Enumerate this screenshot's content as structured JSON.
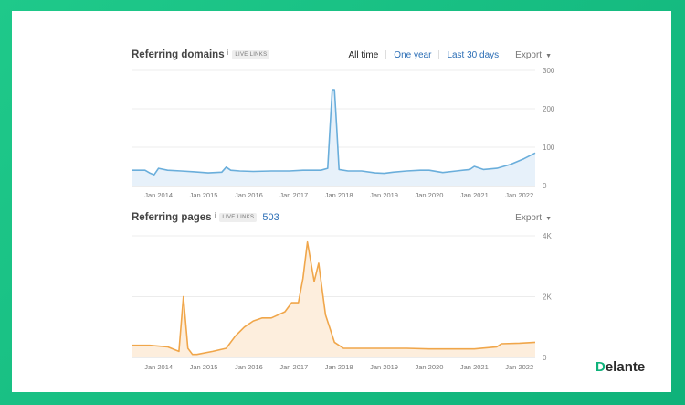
{
  "panels": {
    "domains": {
      "title": "Referring domains",
      "info": "i",
      "badge": "LIVE LINKS",
      "ranges": [
        "All time",
        "One year",
        "Last 30 days"
      ],
      "active_range": "All time",
      "export": "Export",
      "caret": "▼"
    },
    "pages": {
      "title": "Referring pages",
      "info": "i",
      "badge": "LIVE LINKS",
      "count": "503",
      "export": "Export",
      "caret": "▼"
    }
  },
  "logo": {
    "mark": "D",
    "text": "elante"
  },
  "chart_data": [
    {
      "type": "area",
      "color": "#6aaedb",
      "fill": "#e7f1fa",
      "x_ticks": [
        "Jan 2014",
        "Jan 2015",
        "Jan 2016",
        "Jan 2017",
        "Jan 2018",
        "Jan 2019",
        "Jan 2020",
        "Jan 2021",
        "Jan 2022"
      ],
      "x_tick_values": [
        2014,
        2015,
        2016,
        2017,
        2018,
        2019,
        2020,
        2021,
        2022
      ],
      "y_ticks": [
        "0",
        "100",
        "200",
        "300"
      ],
      "y_tick_values": [
        0,
        100,
        200,
        300
      ],
      "xlim": [
        2013.4,
        2022.35
      ],
      "ylim": [
        0,
        300
      ],
      "series": [
        {
          "x": [
            2013.4,
            2013.7,
            2013.8,
            2013.9,
            2014.0,
            2014.2,
            2014.5,
            2014.8,
            2015.1,
            2015.4,
            2015.5,
            2015.6,
            2015.8,
            2016.1,
            2016.5,
            2016.9,
            2017.2,
            2017.4,
            2017.6,
            2017.75,
            2017.8,
            2017.85,
            2017.9,
            2017.95,
            2018.0,
            2018.2,
            2018.5,
            2018.8,
            2019.0,
            2019.2,
            2019.5,
            2019.8,
            2020.0,
            2020.3,
            2020.6,
            2020.9,
            2021.0,
            2021.2,
            2021.5,
            2021.8,
            2022.1,
            2022.35
          ],
          "y": [
            40,
            40,
            33,
            28,
            45,
            40,
            38,
            36,
            33,
            35,
            48,
            40,
            38,
            37,
            38,
            38,
            40,
            40,
            40,
            45,
            150,
            250,
            250,
            150,
            42,
            38,
            38,
            33,
            32,
            35,
            38,
            40,
            40,
            34,
            38,
            42,
            50,
            42,
            45,
            55,
            70,
            85
          ]
        }
      ]
    },
    {
      "type": "area",
      "color": "#f0a64a",
      "fill": "#fdeedd",
      "x_ticks": [
        "Jan 2014",
        "Jan 2015",
        "Jan 2016",
        "Jan 2017",
        "Jan 2018",
        "Jan 2019",
        "Jan 2020",
        "Jan 2021",
        "Jan 2022"
      ],
      "x_tick_values": [
        2014,
        2015,
        2016,
        2017,
        2018,
        2019,
        2020,
        2021,
        2022
      ],
      "y_ticks": [
        "0",
        "2K",
        "4K"
      ],
      "y_tick_values": [
        0,
        2000,
        4000
      ],
      "xlim": [
        2013.4,
        2022.35
      ],
      "ylim": [
        0,
        4000
      ],
      "series": [
        {
          "x": [
            2013.4,
            2013.8,
            2014.2,
            2014.45,
            2014.55,
            2014.65,
            2014.75,
            2014.85,
            2015.2,
            2015.5,
            2015.7,
            2015.9,
            2016.1,
            2016.3,
            2016.5,
            2016.8,
            2016.95,
            2017.1,
            2017.2,
            2017.3,
            2017.45,
            2017.55,
            2017.7,
            2017.9,
            2018.1,
            2018.5,
            2019.0,
            2019.5,
            2020.0,
            2020.5,
            2021.0,
            2021.5,
            2021.6,
            2022.0,
            2022.35
          ],
          "y": [
            400,
            400,
            350,
            200,
            2000,
            300,
            100,
            100,
            200,
            300,
            700,
            1000,
            1200,
            1300,
            1300,
            1500,
            1800,
            1800,
            2600,
            3800,
            2500,
            3100,
            1400,
            500,
            300,
            300,
            300,
            300,
            280,
            280,
            280,
            350,
            450,
            470,
            500
          ]
        }
      ]
    }
  ]
}
